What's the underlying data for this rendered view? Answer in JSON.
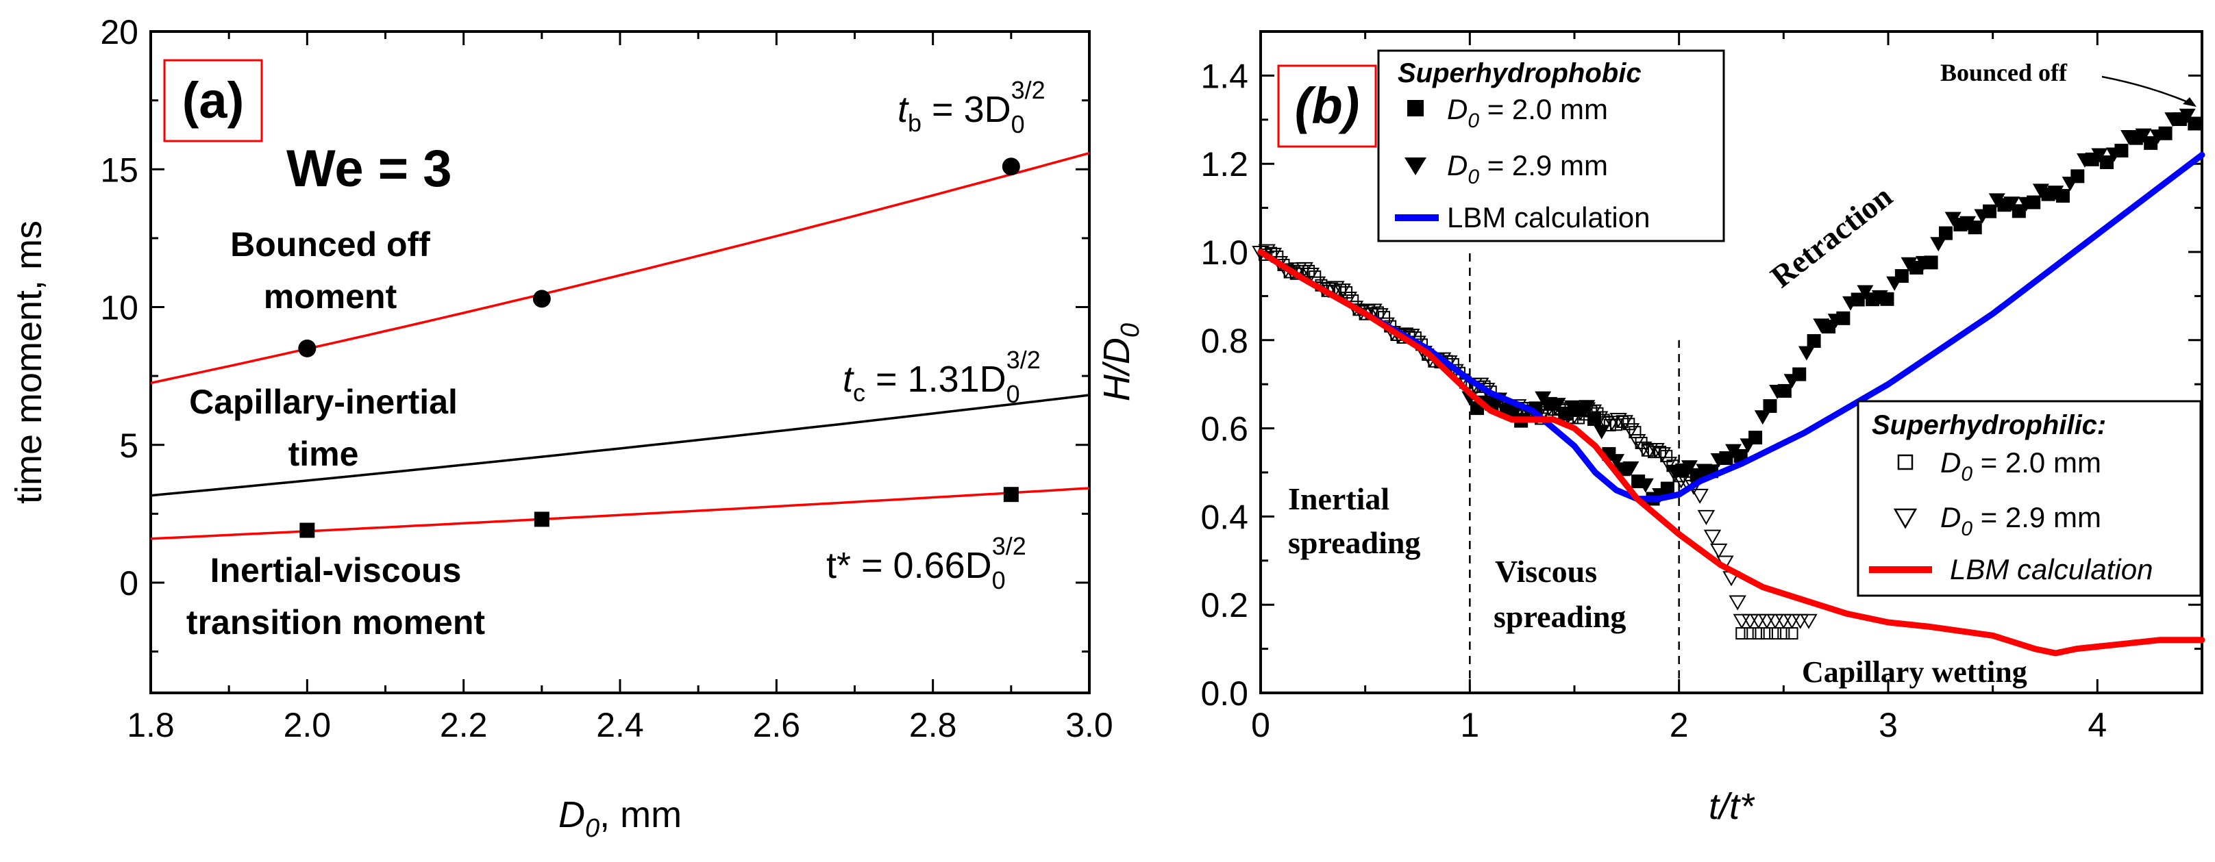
{
  "chart_data": [
    {
      "panel": "a",
      "type": "scatter",
      "panel_label": "(a)",
      "xlabel_main": "D",
      "xlabel_sub": "0",
      "xlabel_rest": ", mm",
      "ylabel": "time moment, ms",
      "xlim": [
        1.8,
        3.0
      ],
      "ylim": [
        -4,
        20
      ],
      "xticks": [
        "1.8",
        "2.0",
        "2.2",
        "2.4",
        "2.6",
        "2.8",
        "3.0"
      ],
      "yticks": [
        "0",
        "5",
        "10",
        "15",
        "20"
      ],
      "we_label": "We = 3",
      "annotations": {
        "bounced_1": "Bounced off",
        "bounced_2": "moment",
        "capillary_1": "Capillary-inertial",
        "capillary_2": "time",
        "inertial_1": "Inertial-viscous",
        "inertial_2": "transition moment"
      },
      "equations": {
        "tb_var": "t",
        "tb_sub": "b",
        "tb_rhs": " = 3D",
        "tb_sub2": "0",
        "tb_sup": "3/2",
        "tc_var": "t",
        "tc_sub": "c",
        "tc_rhs": " = 1.31D",
        "tc_sub2": "0",
        "tc_sup": "3/2",
        "ts_lhs": "t* = 0.66D",
        "ts_sub": "0",
        "ts_sup": "3/2"
      },
      "series": [
        {
          "name": "bounced off moment",
          "marker": "circle",
          "x": [
            2.0,
            2.3,
            2.9
          ],
          "y": [
            8.5,
            10.3,
            15.1
          ],
          "fit_coef": 3.0,
          "color": "#ff0000"
        },
        {
          "name": "capillary-inertial time",
          "marker": "none",
          "fit_coef": 1.31,
          "color": "#000000"
        },
        {
          "name": "inertial-viscous transition moment",
          "marker": "square",
          "x": [
            2.0,
            2.3,
            2.9
          ],
          "y": [
            1.9,
            2.3,
            3.2
          ],
          "fit_coef": 0.66,
          "color": "#ff0000"
        }
      ]
    },
    {
      "panel": "b",
      "type": "line",
      "panel_label": "(b)",
      "xlabel": "t/t*",
      "ylabel_main": "H/D",
      "ylabel_sub": "0",
      "xlim": [
        0,
        4.5
      ],
      "ylim": [
        0,
        1.5
      ],
      "xticks": [
        "0",
        "1",
        "2",
        "3",
        "4"
      ],
      "yticks": [
        "0.0",
        "0.2",
        "0.4",
        "0.6",
        "0.8",
        "1.0",
        "1.2",
        "1.4"
      ],
      "vlines": [
        1,
        2
      ],
      "annotations": {
        "inertial_1": "Inertial",
        "inertial_2": "spreading",
        "viscous_1": "Viscous",
        "viscous_2": "spreading",
        "capillary": "Capillary wetting",
        "retraction": "Retraction",
        "bounced": "Bounced off"
      },
      "legend_top": {
        "title": "Superhydrophobic",
        "entries": [
          {
            "pre": "D",
            "sub": "0",
            "post": " = 2.0 mm",
            "marker": "square-filled"
          },
          {
            "pre": "D",
            "sub": "0",
            "post": " = 2.9 mm",
            "marker": "triangle-down-filled"
          },
          {
            "pre": "LBM calculation",
            "sub": "",
            "post": "",
            "marker": "line-blue"
          }
        ]
      },
      "legend_bottom": {
        "title": "Superhydrophilic:",
        "entries": [
          {
            "pre": "D",
            "sub": "0",
            "post": " = 2.0 mm",
            "marker": "square-open"
          },
          {
            "pre": "D",
            "sub": "0",
            "post": " = 2.9 mm",
            "marker": "triangle-down-open"
          },
          {
            "pre": "LBM calculation",
            "sub": "",
            "post": "",
            "marker": "line-red"
          }
        ]
      },
      "series": [
        {
          "name": "Superhydrophobic LBM calculation",
          "color": "#0000ff",
          "x": [
            0,
            0.2,
            0.5,
            0.8,
            1.0,
            1.1,
            1.3,
            1.5,
            1.6,
            1.7,
            1.8,
            1.9,
            2.0,
            2.1,
            2.3,
            2.6,
            3.0,
            3.5,
            4.0,
            4.5
          ],
          "y": [
            1.0,
            0.94,
            0.86,
            0.78,
            0.71,
            0.68,
            0.64,
            0.56,
            0.5,
            0.46,
            0.44,
            0.44,
            0.45,
            0.48,
            0.52,
            0.59,
            0.7,
            0.86,
            1.04,
            1.22
          ]
        },
        {
          "name": "Superhydrophilic LBM calculation",
          "color": "#ff0000",
          "x": [
            0,
            0.2,
            0.5,
            0.8,
            1.0,
            1.1,
            1.2,
            1.4,
            1.5,
            1.6,
            1.7,
            1.8,
            2.0,
            2.2,
            2.4,
            2.6,
            2.8,
            3.0,
            3.2,
            3.5,
            3.7,
            3.8,
            3.9,
            4.1,
            4.3,
            4.5
          ],
          "y": [
            1.0,
            0.94,
            0.86,
            0.77,
            0.68,
            0.64,
            0.62,
            0.62,
            0.6,
            0.56,
            0.5,
            0.44,
            0.36,
            0.29,
            0.24,
            0.21,
            0.18,
            0.16,
            0.15,
            0.13,
            0.1,
            0.09,
            0.1,
            0.11,
            0.12,
            0.12
          ]
        },
        {
          "name": "Superhydrophobic D0 = 2.0 mm / 2.9 mm (measured)",
          "marker": "filled",
          "x": [
            1.0,
            1.2,
            1.4,
            1.5,
            1.6,
            1.7,
            1.8,
            1.9,
            2.0,
            2.1,
            2.2,
            2.3,
            2.4,
            2.5,
            2.6,
            2.7,
            2.8,
            2.9,
            3.0,
            3.1,
            3.2,
            3.3,
            3.4,
            3.5,
            3.6,
            3.7,
            3.8,
            3.9,
            4.0,
            4.1,
            4.2,
            4.3,
            4.4,
            4.5
          ],
          "y": [
            0.68,
            0.64,
            0.66,
            0.66,
            0.62,
            0.54,
            0.48,
            0.46,
            0.5,
            0.52,
            0.52,
            0.56,
            0.62,
            0.7,
            0.76,
            0.84,
            0.88,
            0.9,
            0.92,
            0.96,
            1.0,
            1.06,
            1.08,
            1.1,
            1.12,
            1.12,
            1.14,
            1.18,
            1.22,
            1.24,
            1.26,
            1.28,
            1.3,
            1.32
          ]
        },
        {
          "name": "Superhydrophilic D0 = 2.0 mm / 2.9 mm (measured)",
          "marker": "open",
          "x": [
            0.0,
            0.3,
            0.6,
            0.9,
            1.2,
            1.5,
            1.7,
            1.8,
            1.9,
            2.0,
            2.1,
            2.15,
            2.2,
            2.25,
            2.3,
            2.4,
            2.5,
            2.6
          ],
          "y": [
            1.0,
            0.93,
            0.84,
            0.74,
            0.64,
            0.64,
            0.62,
            0.58,
            0.54,
            0.5,
            0.44,
            0.38,
            0.32,
            0.25,
            0.17,
            0.16,
            0.16,
            0.16
          ]
        }
      ]
    }
  ]
}
